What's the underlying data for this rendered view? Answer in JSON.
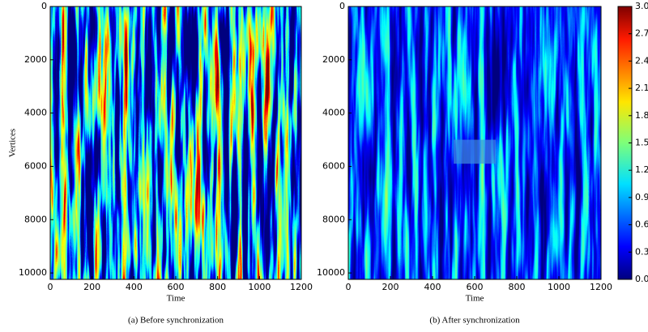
{
  "chart_data": [
    {
      "type": "heatmap",
      "xlabel": "Time",
      "ylabel": "Vertices",
      "caption": "(a) Before synchronization",
      "xlim": [
        0,
        1200
      ],
      "xticks": [
        0,
        200,
        400,
        600,
        800,
        1000,
        1200
      ],
      "ylim": [
        10240,
        0
      ],
      "yticks": [
        0,
        2000,
        4000,
        6000,
        8000,
        10000
      ]
    },
    {
      "type": "heatmap",
      "xlabel": "Time",
      "caption": "(b) After synchronization",
      "xlim": [
        0,
        1200
      ],
      "xticks": [
        0,
        200,
        400,
        600,
        800,
        1000,
        1200
      ],
      "ylim": [
        10240,
        0
      ],
      "yticks": [
        0,
        2000,
        4000,
        6000,
        8000,
        10000
      ]
    },
    {
      "type": "colorbar",
      "clim": [
        0,
        3
      ],
      "ticks": [
        {
          "value": 0,
          "label": "0.0"
        },
        0.3,
        0.6,
        0.9,
        1.2,
        1.5,
        1.8,
        2.1,
        2.4,
        2.7,
        {
          "value": 3,
          "label": "3.0"
        }
      ]
    }
  ]
}
